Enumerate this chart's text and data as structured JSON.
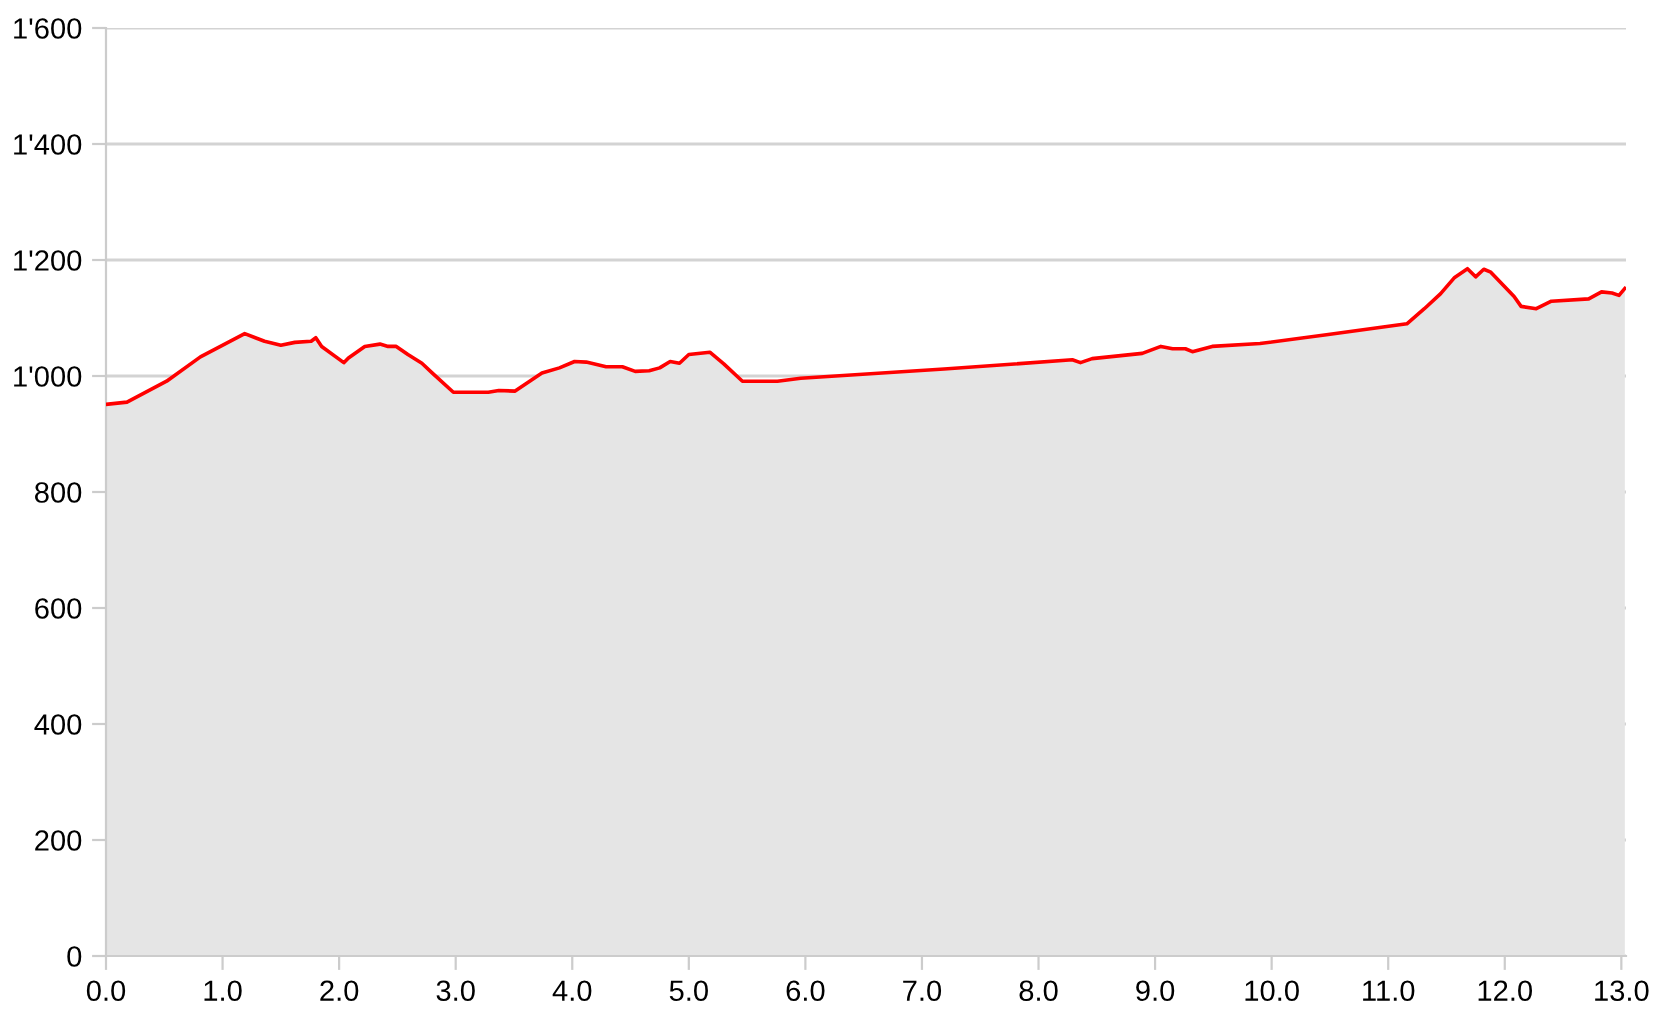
{
  "chart_data": {
    "type": "area",
    "color": "#ff0000",
    "x": [
      0,
      0.18,
      0.52,
      0.81,
      1.19,
      1.36,
      1.5,
      1.62,
      1.76,
      1.8,
      1.85,
      2.04,
      2.08,
      2.22,
      2.35,
      2.42,
      2.49,
      2.59,
      2.71,
      2.8,
      2.98,
      3.28,
      3.37,
      3.51,
      3.74,
      3.89,
      4.02,
      4.12,
      4.29,
      4.43,
      4.54,
      4.66,
      4.75,
      4.84,
      4.92,
      5.0,
      5.18,
      5.3,
      5.46,
      5.76,
      5.96,
      7.19,
      8.29,
      8.36,
      8.46,
      8.89,
      9.05,
      9.15,
      9.26,
      9.32,
      9.49,
      9.9,
      10.47,
      11.16,
      11.31,
      11.45,
      11.57,
      11.68,
      11.75,
      11.82,
      11.88,
      12.08,
      12.14,
      12.27,
      12.4,
      12.72,
      12.83,
      12.92,
      12.98,
      13.03
    ],
    "values": [
      951,
      955,
      991,
      1033,
      1073,
      1060,
      1053,
      1058,
      1060,
      1066,
      1051,
      1023,
      1031,
      1051,
      1055,
      1051,
      1051,
      1037,
      1022,
      1005,
      972,
      972,
      975,
      974,
      1005,
      1014,
      1025,
      1024,
      1016,
      1016,
      1008,
      1009,
      1014,
      1025,
      1022,
      1037,
      1041,
      1021,
      991,
      991,
      996,
      1012,
      1028,
      1023,
      1030,
      1039,
      1051,
      1047,
      1047,
      1042,
      1051,
      1056,
      1071,
      1090,
      1116,
      1142,
      1170,
      1185,
      1171,
      1184,
      1179,
      1137,
      1120,
      1116,
      1129,
      1133,
      1145,
      1143,
      1139,
      1151
    ],
    "xlim": [
      0,
      13.04
    ],
    "ylim": [
      0,
      1600
    ],
    "xticks": [
      {
        "value": 0,
        "label": "0.0"
      },
      {
        "value": 1,
        "label": "1.0"
      },
      {
        "value": 2,
        "label": "2.0"
      },
      {
        "value": 3,
        "label": "3.0"
      },
      {
        "value": 4,
        "label": "4.0"
      },
      {
        "value": 5,
        "label": "5.0"
      },
      {
        "value": 6,
        "label": "6.0"
      },
      {
        "value": 7,
        "label": "7.0"
      },
      {
        "value": 8,
        "label": "8.0"
      },
      {
        "value": 9,
        "label": "9.0"
      },
      {
        "value": 10,
        "label": "10.0"
      },
      {
        "value": 11,
        "label": "11.0"
      },
      {
        "value": 12,
        "label": "12.0"
      },
      {
        "value": 13,
        "label": "13.0"
      }
    ],
    "yticks": [
      0,
      200,
      400,
      600,
      800,
      {
        "value": 1000,
        "label": "1'000"
      },
      {
        "value": 1200,
        "label": "1'200"
      },
      {
        "value": 1400,
        "label": "1'400"
      },
      {
        "value": 1600,
        "label": "1'600"
      }
    ],
    "grid": "y"
  }
}
